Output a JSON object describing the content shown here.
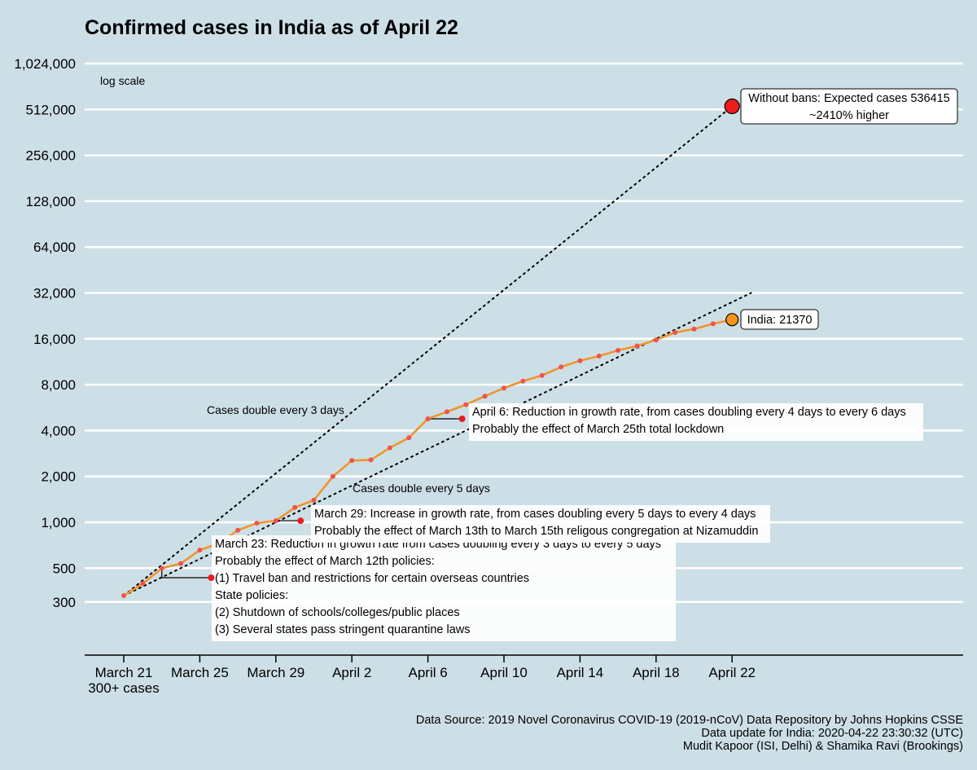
{
  "chart_data": {
    "type": "line",
    "title": "Confirmed cases in India as of April 22",
    "scale_note": "log scale",
    "y_scale": "log2",
    "ylim": [
      300,
      1024000
    ],
    "y_ticks": [
      {
        "value": 300,
        "label": "300"
      },
      {
        "value": 500,
        "label": "500"
      },
      {
        "value": 1000,
        "label": "1,000"
      },
      {
        "value": 2000,
        "label": "2,000"
      },
      {
        "value": 4000,
        "label": "4,000"
      },
      {
        "value": 8000,
        "label": "8,000"
      },
      {
        "value": 16000,
        "label": "16,000"
      },
      {
        "value": 32000,
        "label": "32,000"
      },
      {
        "value": 64000,
        "label": "64,000"
      },
      {
        "value": 128000,
        "label": "128,000"
      },
      {
        "value": 256000,
        "label": "256,000"
      },
      {
        "value": 512000,
        "label": "512,000"
      },
      {
        "value": 1024000,
        "label": "1,024,000"
      }
    ],
    "x_ticks": [
      {
        "day": 0,
        "lines": [
          "March 21",
          "300+ cases"
        ]
      },
      {
        "day": 4,
        "lines": [
          "March 25"
        ]
      },
      {
        "day": 8,
        "lines": [
          "March 29"
        ]
      },
      {
        "day": 12,
        "lines": [
          "April 2"
        ]
      },
      {
        "day": 16,
        "lines": [
          "April 6"
        ]
      },
      {
        "day": 20,
        "lines": [
          "April 10"
        ]
      },
      {
        "day": 24,
        "lines": [
          "April 14"
        ]
      },
      {
        "day": 28,
        "lines": [
          "April 18"
        ]
      },
      {
        "day": 32,
        "lines": [
          "April 22"
        ]
      }
    ],
    "grid": "horizontal",
    "colors": {
      "background": "#cddfe6",
      "line": "#f0952a",
      "points": "#f0524f",
      "marker_red": "#ee1c1c",
      "marker_orange": "#f7941d"
    },
    "series": [
      {
        "name": "India",
        "points": [
          {
            "date": "March 21",
            "day": 0,
            "y": 330
          },
          {
            "date": "March 22",
            "day": 1,
            "y": 396
          },
          {
            "date": "March 23",
            "day": 2,
            "y": 499
          },
          {
            "date": "March 24",
            "day": 3,
            "y": 536
          },
          {
            "date": "March 25",
            "day": 4,
            "y": 657
          },
          {
            "date": "March 26",
            "day": 5,
            "y": 727
          },
          {
            "date": "March 27",
            "day": 6,
            "y": 887
          },
          {
            "date": "March 28",
            "day": 7,
            "y": 987
          },
          {
            "date": "March 29",
            "day": 8,
            "y": 1024
          },
          {
            "date": "March 30",
            "day": 9,
            "y": 1251
          },
          {
            "date": "March 31",
            "day": 10,
            "y": 1397
          },
          {
            "date": "April 1",
            "day": 11,
            "y": 1998
          },
          {
            "date": "April 2",
            "day": 12,
            "y": 2543
          },
          {
            "date": "April 3",
            "day": 13,
            "y": 2567
          },
          {
            "date": "April 4",
            "day": 14,
            "y": 3082
          },
          {
            "date": "April 5",
            "day": 15,
            "y": 3588
          },
          {
            "date": "April 6",
            "day": 16,
            "y": 4778
          },
          {
            "date": "April 7",
            "day": 17,
            "y": 5311
          },
          {
            "date": "April 8",
            "day": 18,
            "y": 5916
          },
          {
            "date": "April 9",
            "day": 19,
            "y": 6725
          },
          {
            "date": "April 10",
            "day": 20,
            "y": 7598
          },
          {
            "date": "April 11",
            "day": 21,
            "y": 8446
          },
          {
            "date": "April 12",
            "day": 22,
            "y": 9205
          },
          {
            "date": "April 13",
            "day": 23,
            "y": 10453
          },
          {
            "date": "April 14",
            "day": 24,
            "y": 11487
          },
          {
            "date": "April 15",
            "day": 25,
            "y": 12322
          },
          {
            "date": "April 16",
            "day": 26,
            "y": 13430
          },
          {
            "date": "April 17",
            "day": 27,
            "y": 14352
          },
          {
            "date": "April 18",
            "day": 28,
            "y": 15722
          },
          {
            "date": "April 19",
            "day": 29,
            "y": 17615
          },
          {
            "date": "April 20",
            "day": 30,
            "y": 18539
          },
          {
            "date": "April 21",
            "day": 31,
            "y": 20080
          },
          {
            "date": "April 22",
            "day": 32,
            "y": 21370
          }
        ]
      }
    ],
    "trend_lines": [
      {
        "label": "Cases double every 3 days",
        "start": {
          "day": 0,
          "y": 330
        },
        "end": {
          "day": 32,
          "y": 536415
        }
      },
      {
        "label": "Cases double every 5 days",
        "start": {
          "day": 0,
          "y": 330
        },
        "end": {
          "day": 33,
          "y": 32000
        }
      }
    ],
    "markers": [
      {
        "day": 32,
        "y": 536415,
        "color": "#ee1c1c",
        "size": "large"
      },
      {
        "day": 32,
        "y": 21370,
        "color": "#f7941d",
        "size": "medium"
      },
      {
        "day": 4.6,
        "y": 433,
        "color": "#ee1c1c",
        "size": "small"
      },
      {
        "day": 9.3,
        "y": 1024,
        "color": "#ee1c1c",
        "size": "small"
      },
      {
        "day": 17.8,
        "y": 4778,
        "color": "#ee1c1c",
        "size": "small"
      }
    ],
    "labels": {
      "without_bans": [
        "Without bans: Expected cases 536415",
        "~2410% higher"
      ],
      "india": "India: 21370"
    },
    "annotations": [
      {
        "id": "march23",
        "lines": [
          "March 23: Reduction in growth rate from cases doubling every 3 days to every 5 days",
          "Probably the effect of March 12th policies:",
          "(1) Travel ban and restrictions for certain overseas countries",
          "State policies:",
          "(2) Shutdown of schools/colleges/public places",
          "(3) Several states pass stringent quarantine laws"
        ]
      },
      {
        "id": "march29",
        "lines": [
          "March 29: Increase in growth rate, from cases doubling every 5 days to every 4 days",
          "Probably the effect of March 13th to March 15th religous congregation at Nizamuddin"
        ]
      },
      {
        "id": "april6",
        "lines": [
          "April 6: Reduction in growth rate, from cases doubling every 4 days to every 6 days",
          "Probably the effect of March 25th total lockdown"
        ]
      }
    ],
    "source": [
      "Data Source: 2019 Novel Coronavirus COVID-19 (2019-nCoV) Data Repository by Johns Hopkins CSSE",
      "Data update for India: 2020-04-22 23:30:32 (UTC)",
      "Mudit Kapoor (ISI, Delhi) & Shamika Ravi (Brookings)"
    ]
  }
}
